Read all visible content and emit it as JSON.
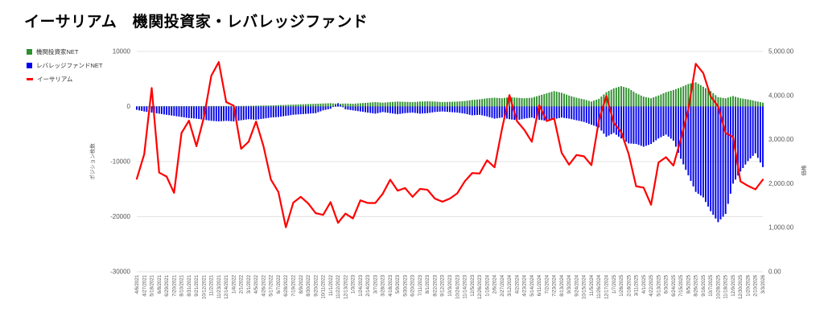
{
  "title": "イーサリアム　機関投資家・レバレッジファンド",
  "legend": [
    {
      "label": "機関投資家NET",
      "color": "#2f8f2f",
      "swatch": "square"
    },
    {
      "label": "レバレッジファンドNET",
      "color": "#0000ee",
      "swatch": "square"
    },
    {
      "label": "イーサリアム",
      "color": "#ff0000",
      "swatch": "line"
    }
  ],
  "chart_data": {
    "type": "combo-bar-line",
    "grid": "horizontal-on",
    "left_axis": {
      "title": "ポジション枚数",
      "min": -30000,
      "max": 10000,
      "ticks": [
        "10000",
        "0",
        "-10000",
        "-20000",
        "-30000"
      ],
      "tick_values": [
        10000,
        0,
        -10000,
        -20000,
        -30000
      ]
    },
    "right_axis": {
      "title": "価格",
      "min": 0,
      "max": 5000,
      "ticks": [
        "5,000.00",
        "4,000.00",
        "3,000.00",
        "2,000.00",
        "1,000.00",
        "0.00"
      ],
      "tick_values": [
        5000,
        4000,
        3000,
        2000,
        1000,
        0
      ]
    },
    "categories": [
      "4/6/2021",
      "4/27/2021",
      "5/18/2021",
      "6/8/2021",
      "6/29/2021",
      "7/20/2021",
      "8/10/2021",
      "8/31/2021",
      "9/21/2021",
      "10/12/2021",
      "11/2/2021",
      "11/23/2021",
      "12/14/2021",
      "1/4/2022",
      "2/1/2022",
      "3/1/2022",
      "4/5/2022",
      "4/26/2022",
      "5/17/2022",
      "6/7/2022",
      "6/28/2022",
      "7/19/2022",
      "8/9/2022",
      "8/30/2022",
      "9/20/2022",
      "10/11/2022",
      "11/1/2022",
      "11/22/2022",
      "12/13/2022",
      "1/3/2023",
      "1/24/2023",
      "2/14/2023",
      "3/7/2023",
      "3/28/2023",
      "4/18/2023",
      "5/9/2023",
      "5/30/2023",
      "6/20/2023",
      "7/11/2023",
      "8/1/2023",
      "8/22/2023",
      "9/12/2023",
      "10/3/2023",
      "10/24/2023",
      "11/14/2023",
      "12/5/2023",
      "12/26/2023",
      "1/16/2024",
      "2/6/2024",
      "2/27/2024",
      "3/12/2024",
      "4/2/2024",
      "4/23/2024",
      "5/14/2024",
      "6/11/2024",
      "7/2/2024",
      "7/23/2024",
      "8/13/2024",
      "9/3/2024",
      "9/24/2024",
      "10/15/2024",
      "11/5/2024",
      "11/26/2024",
      "12/17/2024",
      "1/7/2025",
      "1/28/2025",
      "2/18/2025",
      "3/11/2025",
      "4/1/2025",
      "4/22/2025",
      "5/13/2025",
      "6/3/2025",
      "6/24/2025",
      "7/15/2025",
      "8/5/2025",
      "8/26/2025",
      "9/16/2025",
      "10/7/2025",
      "10/28/2025",
      "11/18/2025",
      "12/9/2025",
      "12/30/2025",
      "1/20/2026",
      "2/10/2026",
      "3/3/2026"
    ],
    "series": [
      {
        "name": "機関投資家NET",
        "type": "bar",
        "axis": "left",
        "color": "#2f8f2f",
        "values": [
          50,
          50,
          60,
          60,
          70,
          70,
          80,
          80,
          80,
          90,
          90,
          100,
          100,
          100,
          100,
          120,
          150,
          180,
          200,
          250,
          300,
          350,
          400,
          450,
          500,
          550,
          600,
          500,
          550,
          500,
          600,
          700,
          800,
          700,
          800,
          900,
          850,
          800,
          900,
          950,
          900,
          800,
          850,
          900,
          1000,
          1200,
          1300,
          1500,
          1600,
          1500,
          1700,
          1600,
          1500,
          1600,
          2000,
          2400,
          2800,
          2500,
          2000,
          1600,
          1300,
          900,
          1400,
          2600,
          3300,
          3700,
          3300,
          2400,
          1800,
          1500,
          2000,
          2600,
          3000,
          3500,
          4100,
          4400,
          3600,
          2800,
          1700,
          1500,
          1900,
          1500,
          1300,
          1000,
          700
        ]
      },
      {
        "name": "レバレッジファンドNET",
        "type": "bar",
        "axis": "left",
        "color": "#0000ee",
        "values": [
          -600,
          -900,
          -1100,
          -1300,
          -1500,
          -1700,
          -1900,
          -2100,
          -2200,
          -2400,
          -2600,
          -2700,
          -2600,
          -2700,
          -2500,
          -2300,
          -2400,
          -2200,
          -2000,
          -1900,
          -1700,
          -1500,
          -1400,
          -1300,
          -1200,
          -700,
          -400,
          600,
          -500,
          -700,
          -900,
          -1100,
          -1300,
          -1000,
          -1200,
          -1400,
          -1200,
          -1100,
          -1300,
          -1200,
          -1000,
          -900,
          -1000,
          -1100,
          -1300,
          -1600,
          -1500,
          -1800,
          -2200,
          -2000,
          -2300,
          -2500,
          -2200,
          -2000,
          -2400,
          -2600,
          -2300,
          -2000,
          -2200,
          -2500,
          -2800,
          -3300,
          -3800,
          -5500,
          -4800,
          -5800,
          -6700,
          -6800,
          -7300,
          -6800,
          -5800,
          -5100,
          -6200,
          -9500,
          -12500,
          -15500,
          -16500,
          -19000,
          -21000,
          -19500,
          -14000,
          -11800,
          -9900,
          -8500,
          -11000
        ]
      },
      {
        "name": "イーサリアム",
        "type": "line",
        "axis": "right",
        "color": "#ff0000",
        "values": [
          2110,
          2670,
          4170,
          2250,
          2160,
          1790,
          3150,
          3430,
          2850,
          3500,
          4450,
          4760,
          3850,
          3770,
          2790,
          2950,
          3410,
          2850,
          2090,
          1810,
          1010,
          1570,
          1700,
          1550,
          1330,
          1290,
          1580,
          1110,
          1320,
          1210,
          1620,
          1560,
          1560,
          1770,
          2090,
          1840,
          1900,
          1700,
          1880,
          1860,
          1660,
          1590,
          1660,
          1780,
          2050,
          2240,
          2230,
          2530,
          2370,
          3240,
          4010,
          3420,
          3220,
          2950,
          3780,
          3420,
          3480,
          2700,
          2430,
          2650,
          2620,
          2420,
          3430,
          3990,
          3380,
          3170,
          2670,
          1940,
          1910,
          1520,
          2480,
          2600,
          2410,
          3010,
          3680,
          4720,
          4510,
          3980,
          3750,
          3150,
          3060,
          2050,
          1950,
          1870,
          2090
        ]
      }
    ]
  },
  "colors": {
    "gridline": "#e3e3e3",
    "tick_text": "#555555",
    "title_text": "#000000"
  }
}
